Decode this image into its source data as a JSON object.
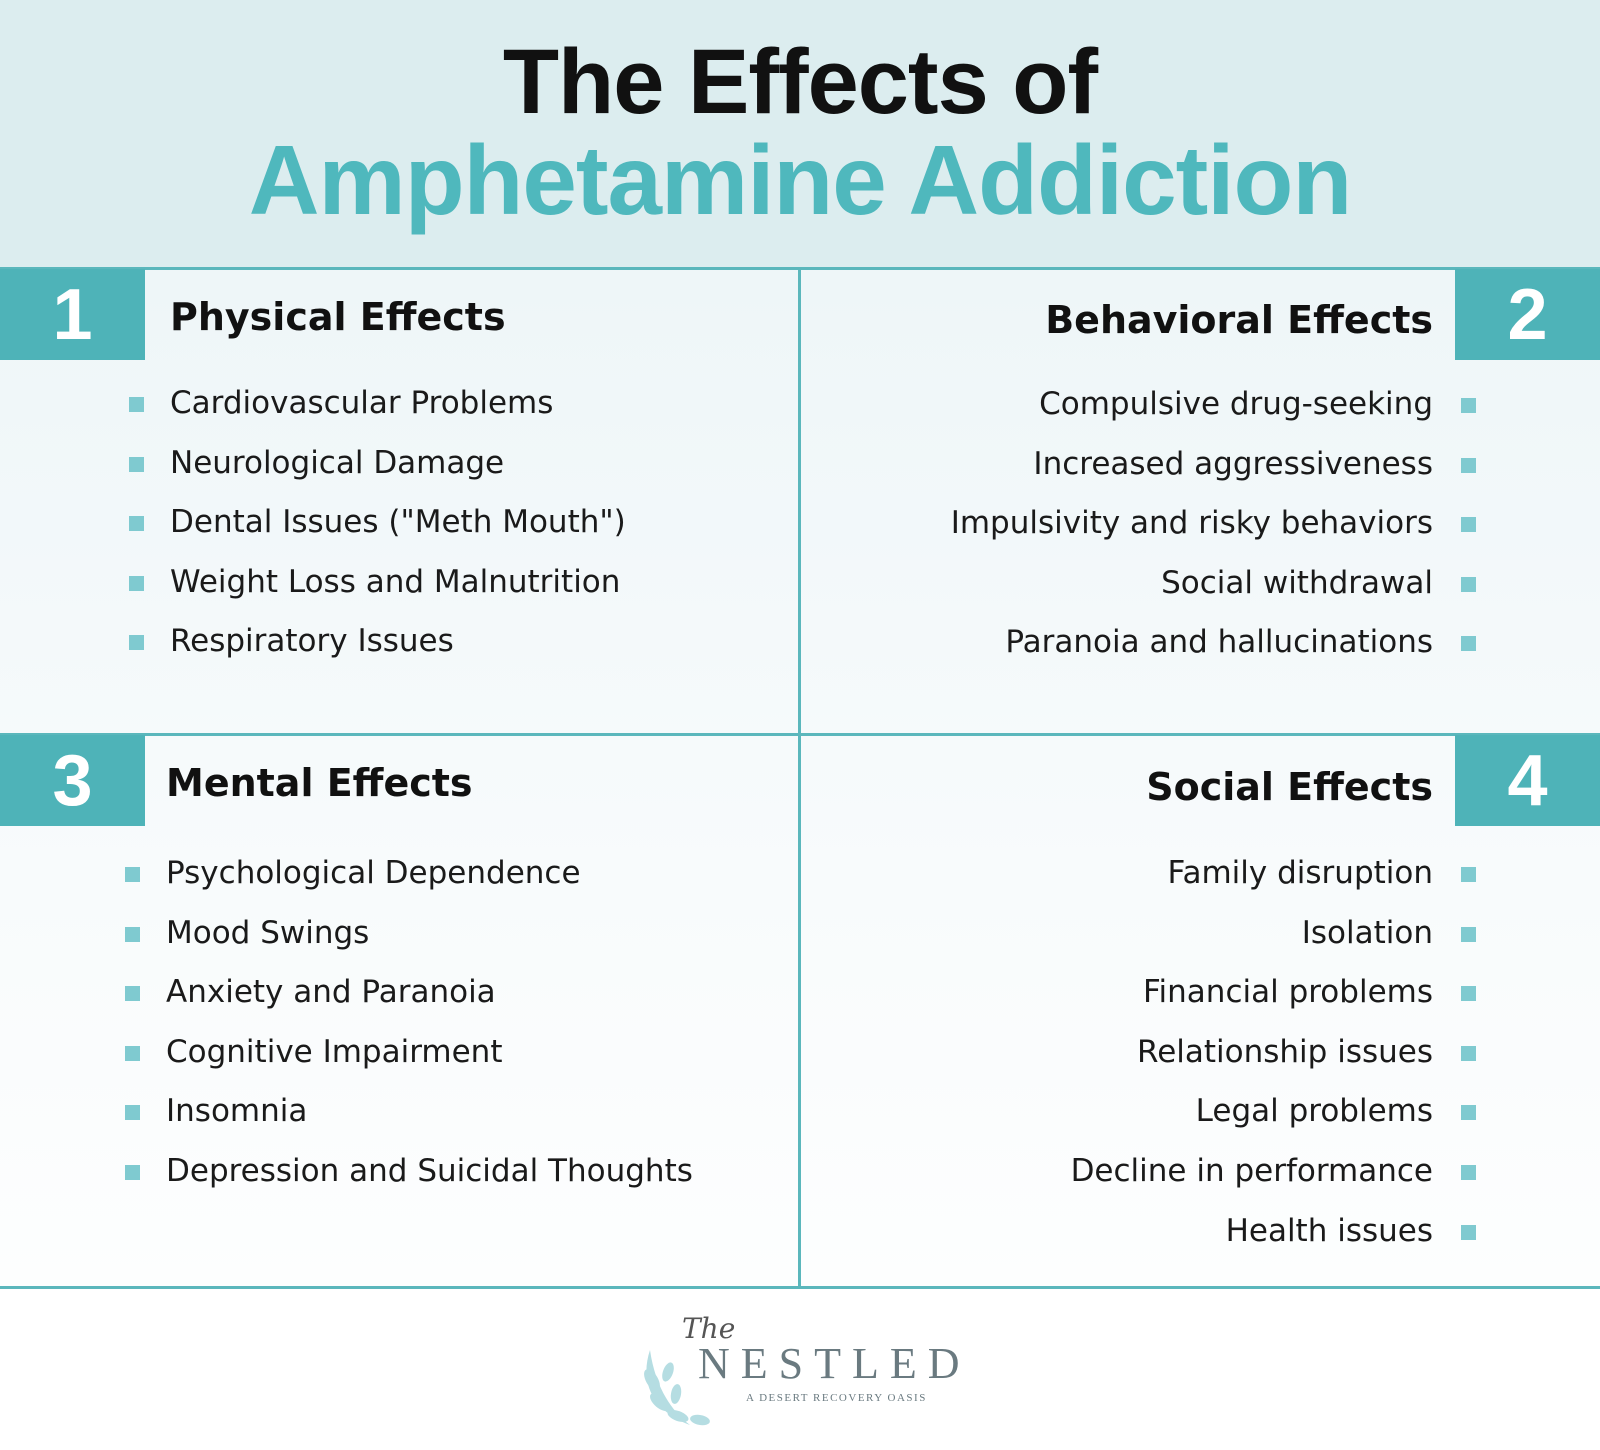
{
  "header": {
    "title_line1": "The Effects of",
    "title_line2": "Amphetamine Addiction"
  },
  "sections": [
    {
      "number": "1",
      "title": "Physical Effects",
      "items": [
        "Cardiovascular Problems",
        "Neurological Damage",
        "Dental Issues (\"Meth Mouth\")",
        "Weight Loss and Malnutrition",
        "Respiratory Issues"
      ]
    },
    {
      "number": "2",
      "title": "Behavioral Effects",
      "items": [
        "Compulsive drug-seeking",
        "Increased aggressiveness",
        "Impulsivity and risky behaviors",
        "Social withdrawal",
        "Paranoia and hallucinations"
      ]
    },
    {
      "number": "3",
      "title": "Mental Effects",
      "items": [
        "Psychological Dependence",
        "Mood Swings",
        "Anxiety and Paranoia",
        "Cognitive Impairment",
        "Insomnia",
        "Depression and Suicidal Thoughts"
      ]
    },
    {
      "number": "4",
      "title": "Social Effects",
      "items": [
        "Family disruption",
        "Isolation",
        "Financial problems",
        "Relationship issues",
        "Legal problems",
        "Decline in performance",
        "Health issues"
      ]
    }
  ],
  "logo": {
    "script": "The",
    "name": "NESTLED",
    "tagline": "A DESERT RECOVERY OASIS"
  }
}
